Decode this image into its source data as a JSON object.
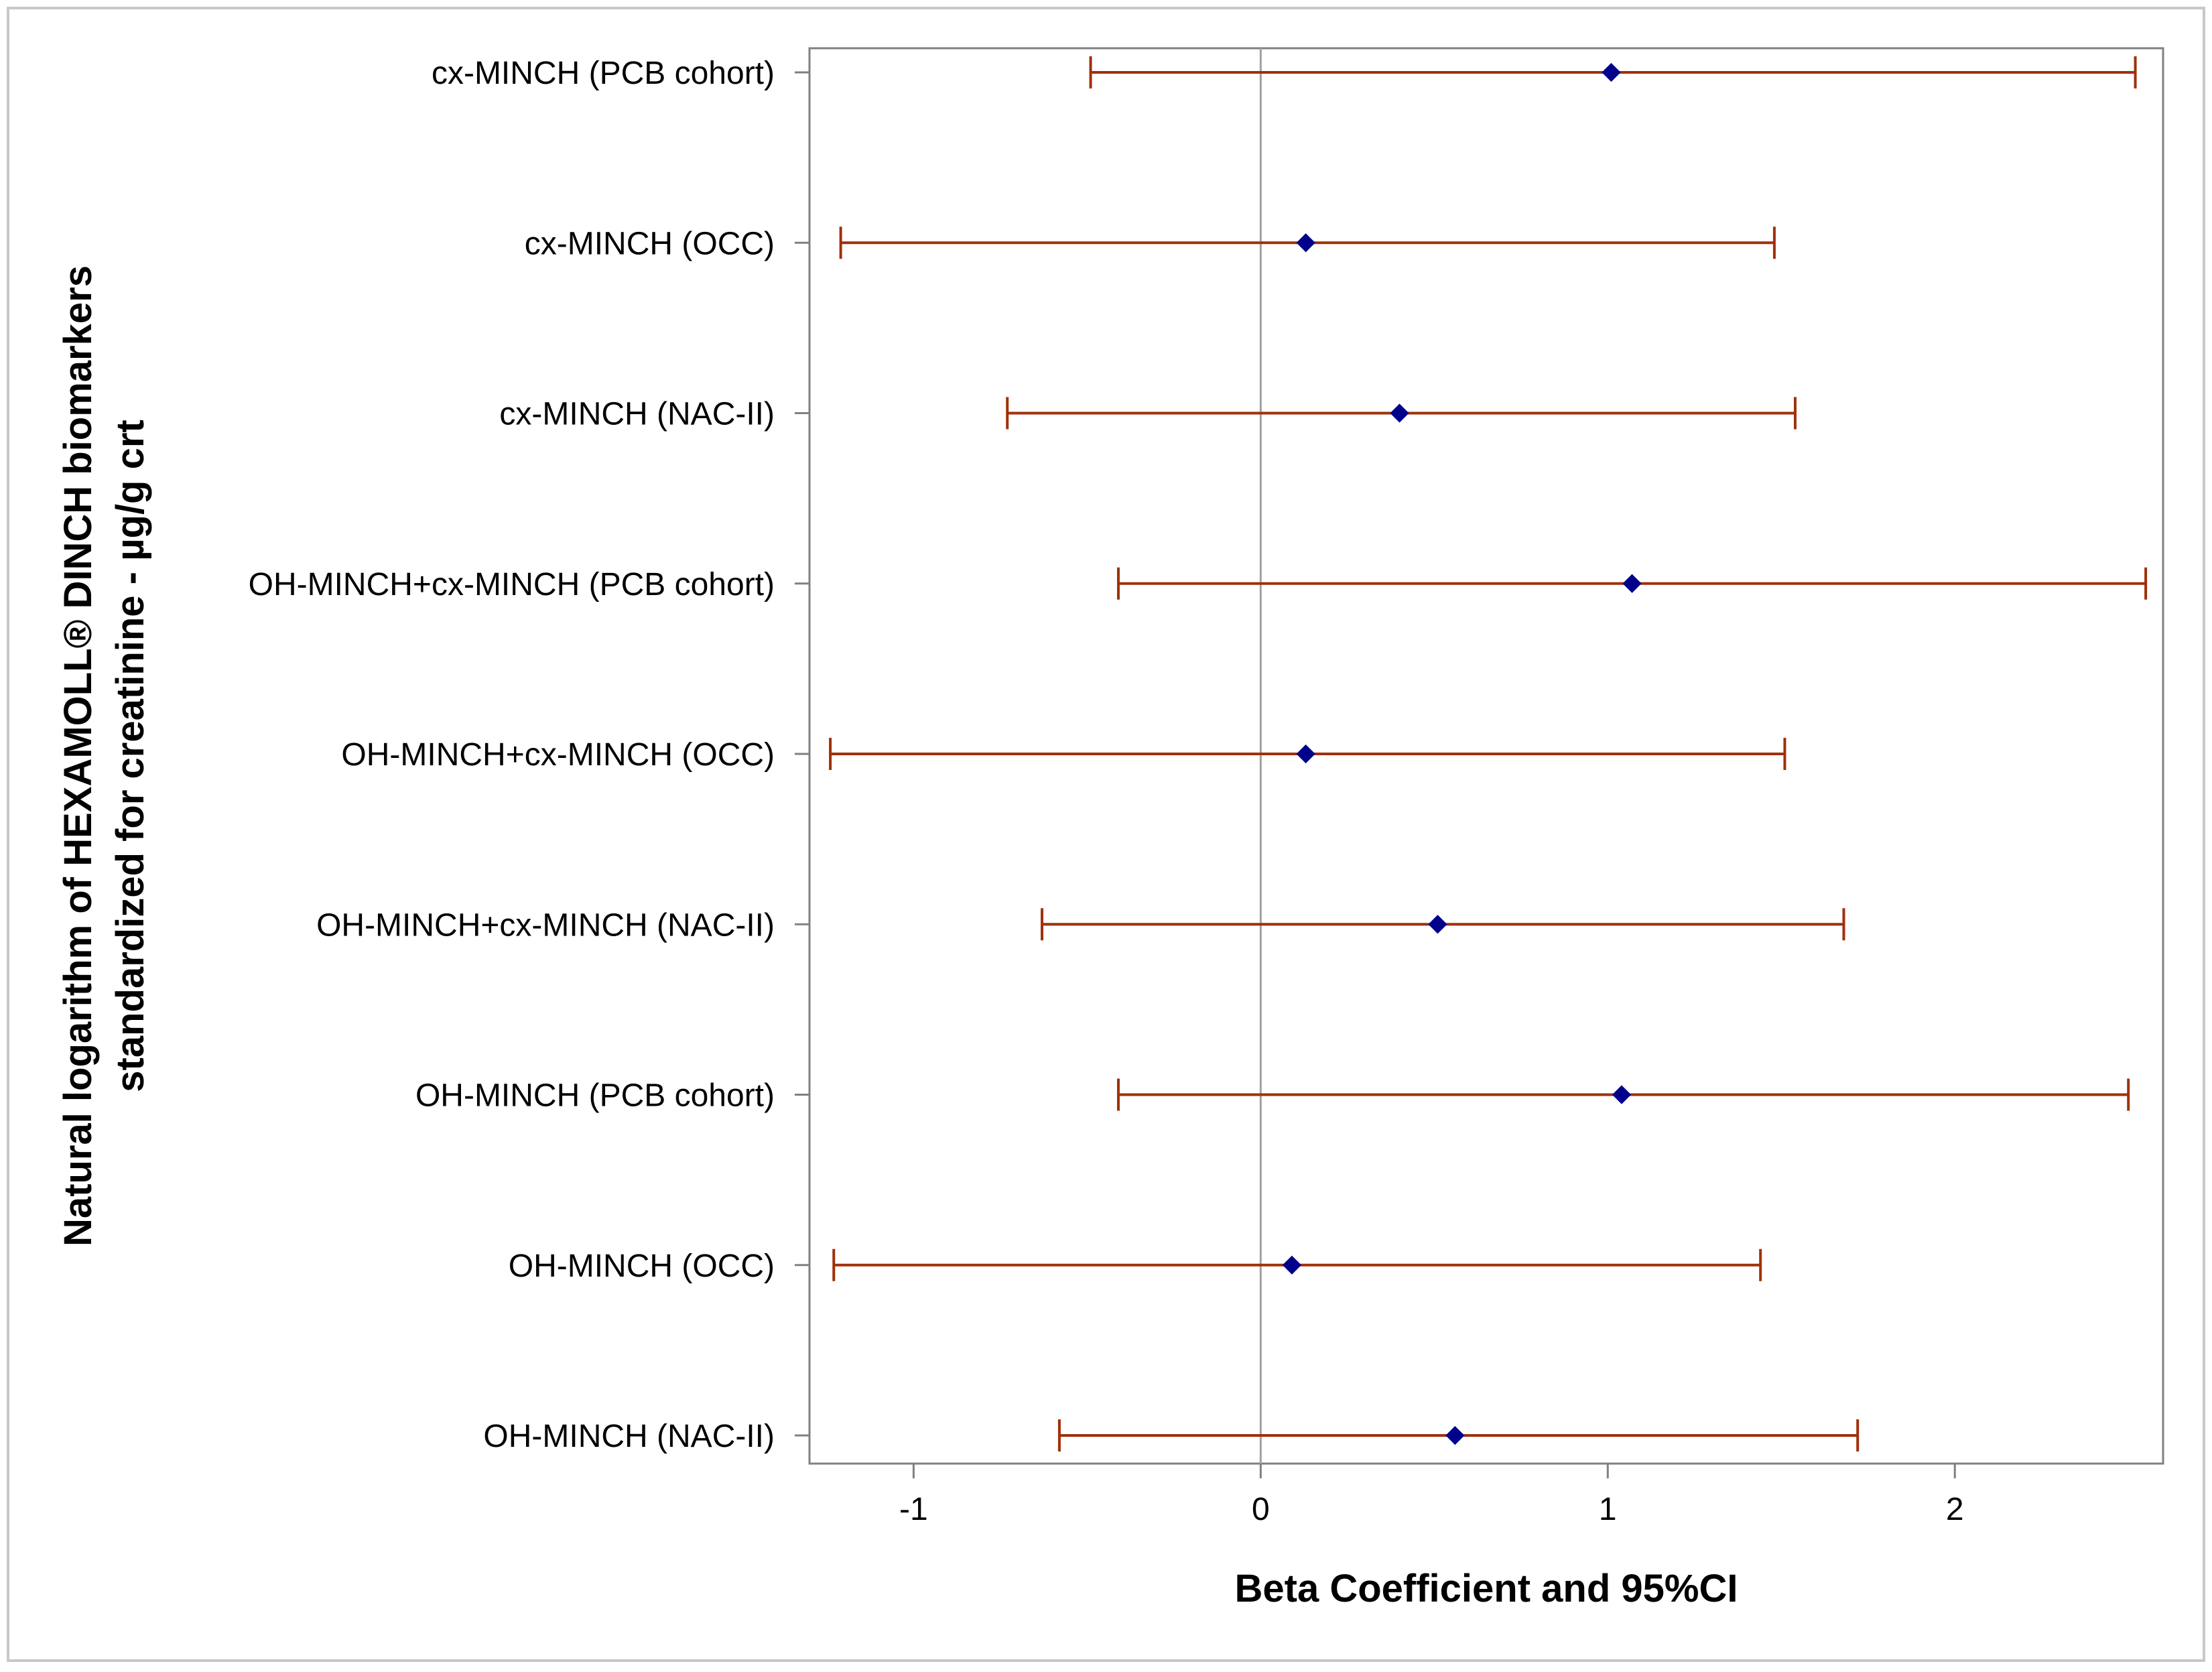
{
  "chart_data": {
    "type": "scatter",
    "subtype": "forest-plot",
    "title": "",
    "xlabel": "Beta Coefficient and 95%CI",
    "ylabel_lines": [
      "Natural logarithm of HEXAMOLL® DINCH biomarkers",
      "standardized for creatinine - µg/g crt"
    ],
    "xlim": [
      -1.3,
      2.6
    ],
    "xticks": [
      -1,
      0,
      1,
      2
    ],
    "xtick_labels": [
      "-1",
      "0",
      "1",
      "2"
    ],
    "reference_line": 0,
    "grid": false,
    "colors": {
      "point": "#00008b",
      "interval": "#a0300a",
      "reference_line": "#a0a0a0",
      "frame": "#808080",
      "outer_border": "#c8c8c8"
    },
    "rows": [
      {
        "label": "cx-MINCH (PCB cohort)",
        "estimate": 1.01,
        "lower": -0.49,
        "upper": 2.52
      },
      {
        "label": "cx-MINCH (OCC)",
        "estimate": 0.13,
        "lower": -1.21,
        "upper": 1.48
      },
      {
        "label": "cx-MINCH (NAC-II)",
        "estimate": 0.4,
        "lower": -0.73,
        "upper": 1.54
      },
      {
        "label": "OH-MINCH+cx-MINCH (PCB cohort)",
        "estimate": 1.07,
        "lower": -0.41,
        "upper": 2.55
      },
      {
        "label": "OH-MINCH+cx-MINCH (OCC)",
        "estimate": 0.13,
        "lower": -1.24,
        "upper": 1.51
      },
      {
        "label": "OH-MINCH+cx-MINCH (NAC-II)",
        "estimate": 0.51,
        "lower": -0.63,
        "upper": 1.68
      },
      {
        "label": "OH-MINCH (PCB cohort)",
        "estimate": 1.04,
        "lower": -0.41,
        "upper": 2.5
      },
      {
        "label": "OH-MINCH (OCC)",
        "estimate": 0.09,
        "lower": -1.23,
        "upper": 1.44
      },
      {
        "label": "OH-MINCH (NAC-II)",
        "estimate": 0.56,
        "lower": -0.58,
        "upper": 1.72
      }
    ]
  }
}
